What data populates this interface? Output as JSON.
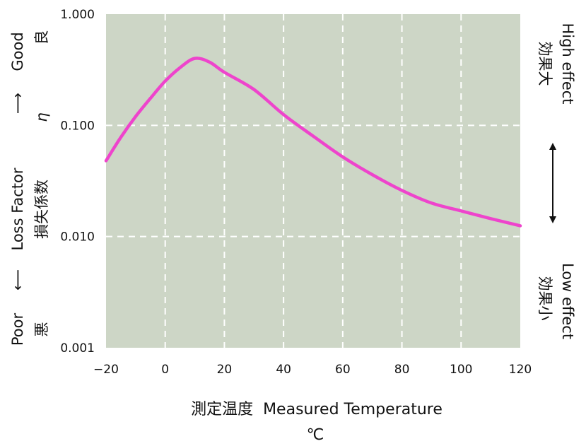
{
  "chart_data": {
    "type": "line",
    "xlabel": "測定温度  Measured Temperature",
    "xunit": "℃",
    "ylabel_ja": "損失係数",
    "ylabel_en": "Loss Factor",
    "ylabel_symbol": "η",
    "yscale": "log",
    "xlim": [
      -20,
      120
    ],
    "ylim": [
      0.001,
      1.0
    ],
    "x_ticks": [
      "−20",
      "0",
      "20",
      "40",
      "60",
      "80",
      "100",
      "120"
    ],
    "y_ticks": [
      "0.001",
      "0.010",
      "0.100",
      "1.000"
    ],
    "grid": true,
    "series": [
      {
        "x": [
          -20,
          -15,
          -10,
          -5,
          0,
          5,
          10,
          15,
          20,
          30,
          40,
          50,
          60,
          70,
          80,
          90,
          100,
          110,
          120
        ],
        "values": [
          0.048,
          0.078,
          0.12,
          0.175,
          0.25,
          0.33,
          0.4,
          0.37,
          0.3,
          0.21,
          0.125,
          0.08,
          0.052,
          0.036,
          0.026,
          0.02,
          0.017,
          0.0145,
          0.0125
        ]
      }
    ],
    "annotations": {
      "left_top_en": "Good",
      "left_top_ja": "良",
      "left_bottom_en": "Poor",
      "left_bottom_ja": "悪",
      "right_top_en": "High effect",
      "right_top_ja": "効果大",
      "right_bottom_en": "Low effect",
      "right_bottom_ja": "効果小"
    },
    "colors": {
      "plot_background": "#cdd6c6",
      "line": "#ee44cc",
      "grid": "#ffffff"
    }
  }
}
